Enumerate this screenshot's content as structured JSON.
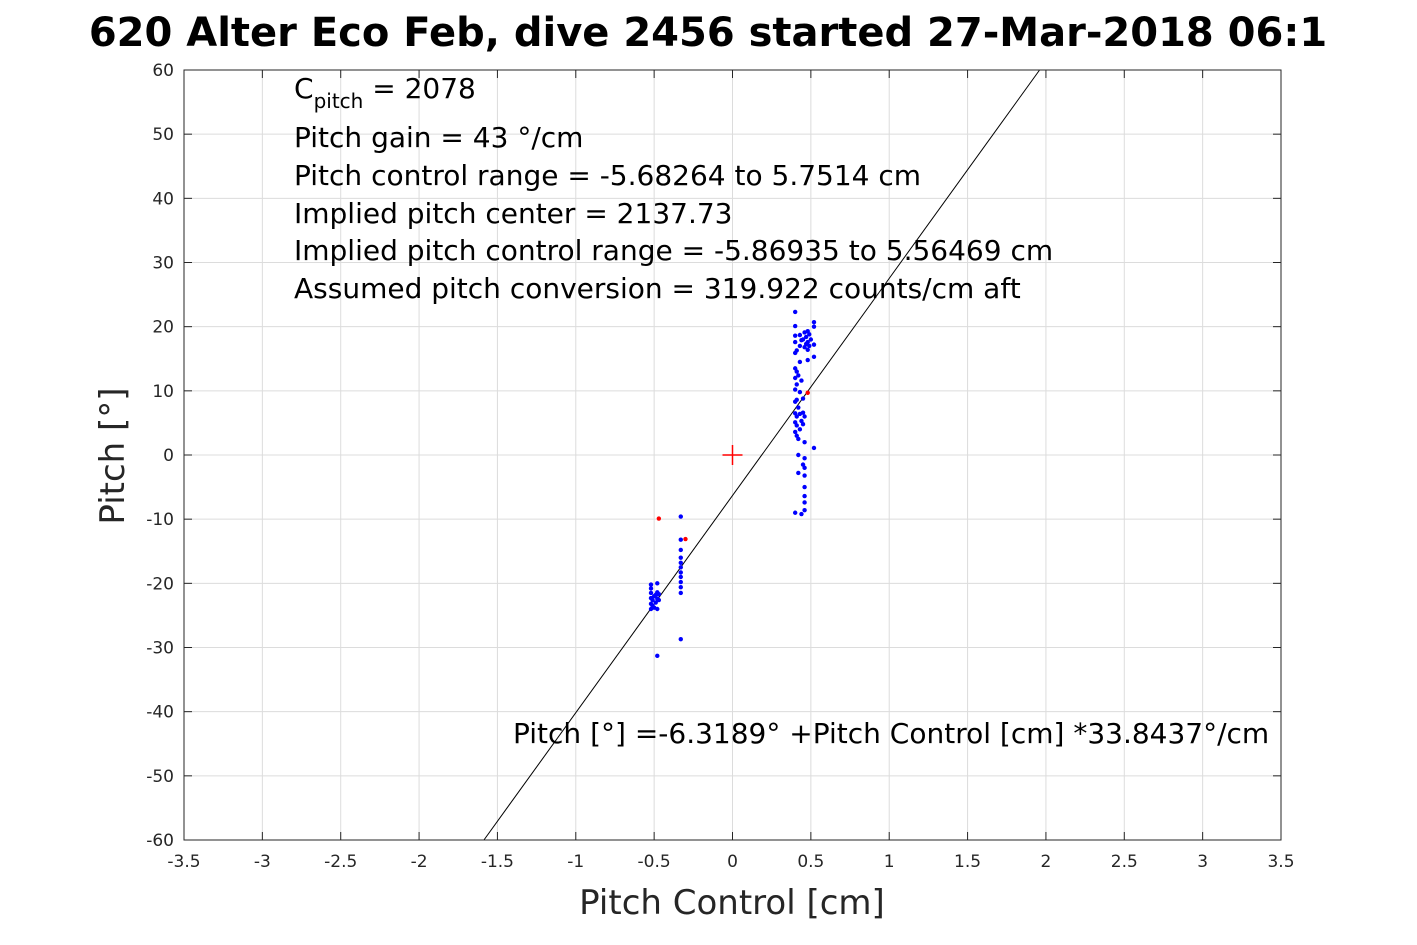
{
  "chart_data": {
    "type": "scatter",
    "title": "620 Alter Eco Feb, dive 2456 started 27-Mar-2018 06:1",
    "xlabel": "Pitch Control [cm]",
    "ylabel": "Pitch [°]",
    "xlim": [
      -3.5,
      3.5
    ],
    "ylim": [
      -60,
      60
    ],
    "xticks": [
      -3.5,
      -3,
      -2.5,
      -2,
      -1.5,
      -1,
      -0.5,
      0,
      0.5,
      1,
      1.5,
      2,
      2.5,
      3,
      3.5
    ],
    "xtick_labels": [
      "-3.5",
      "-3",
      "-2.5",
      "-2",
      "-1.5",
      "-1",
      "-0.5",
      "0",
      "0.5",
      "1",
      "1.5",
      "2",
      "2.5",
      "3",
      "3.5"
    ],
    "yticks": [
      60,
      50,
      40,
      30,
      20,
      10,
      0,
      -10,
      -20,
      -30,
      -40,
      -50,
      -60
    ],
    "ytick_labels": [
      "60",
      "50",
      "40",
      "30",
      "20",
      "10",
      "0",
      "-10",
      "-20",
      "-30",
      "-40",
      "-50",
      "-60"
    ],
    "grid": true,
    "annotations": {
      "c_pitch_main": "C",
      "c_pitch_sub": "pitch",
      "c_pitch_value": " = 2078",
      "lines": [
        "Pitch gain = 43 °/cm",
        "Pitch control range = -5.68264 to 5.7514 cm",
        "Implied pitch center = 2137.73",
        "Implied pitch control range = -5.86935 to 5.56469 cm",
        "Assumed pitch conversion = 319.922 counts/cm aft"
      ],
      "fit_equation": "Pitch [°] =-6.3189° +Pitch Control [cm] *33.8437°/cm"
    },
    "fit_line": {
      "intercept": -6.3189,
      "slope": 33.8437,
      "color": "#000000"
    },
    "center_marker": {
      "x": 0,
      "y": 0,
      "color": "#ff0000"
    },
    "series": [
      {
        "color": "#0000ff",
        "points": [
          [
            -0.52,
            -20.2
          ],
          [
            -0.52,
            -20.8
          ],
          [
            -0.52,
            -21.5
          ],
          [
            -0.52,
            -22.3
          ],
          [
            -0.52,
            -23.2
          ],
          [
            -0.52,
            -24.0
          ],
          [
            -0.51,
            -23.5
          ],
          [
            -0.51,
            -22.6
          ],
          [
            -0.5,
            -23.8
          ],
          [
            -0.5,
            -22.0
          ],
          [
            -0.49,
            -21.8
          ],
          [
            -0.49,
            -23.0
          ],
          [
            -0.48,
            -22.4
          ],
          [
            -0.48,
            -21.4
          ],
          [
            -0.48,
            -20.0
          ],
          [
            -0.48,
            -24.0
          ],
          [
            -0.47,
            -21.7
          ],
          [
            -0.47,
            -22.6
          ],
          [
            -0.48,
            -31.3
          ],
          [
            -0.33,
            -9.6
          ],
          [
            -0.33,
            -13.2
          ],
          [
            -0.33,
            -14.8
          ],
          [
            -0.33,
            -16.0
          ],
          [
            -0.33,
            -16.8
          ],
          [
            -0.33,
            -17.5
          ],
          [
            -0.33,
            -18.3
          ],
          [
            -0.33,
            -19.0
          ],
          [
            -0.33,
            -19.8
          ],
          [
            -0.33,
            -20.6
          ],
          [
            -0.33,
            -21.5
          ],
          [
            -0.33,
            -28.7
          ],
          [
            0.4,
            22.3
          ],
          [
            0.4,
            20.1
          ],
          [
            0.4,
            18.6
          ],
          [
            0.4,
            17.6
          ],
          [
            0.4,
            15.9
          ],
          [
            0.4,
            13.5
          ],
          [
            0.4,
            12.0
          ],
          [
            0.4,
            10.2
          ],
          [
            0.4,
            8.3
          ],
          [
            0.4,
            6.5
          ],
          [
            0.4,
            5.1
          ],
          [
            0.4,
            3.6
          ],
          [
            0.4,
            -9.0
          ],
          [
            0.41,
            16.3
          ],
          [
            0.41,
            13.0
          ],
          [
            0.41,
            11.0
          ],
          [
            0.41,
            8.6
          ],
          [
            0.41,
            6.0
          ],
          [
            0.41,
            4.6
          ],
          [
            0.41,
            3.0
          ],
          [
            0.42,
            12.4
          ],
          [
            0.42,
            7.4
          ],
          [
            0.42,
            2.5
          ],
          [
            0.42,
            0.0
          ],
          [
            0.42,
            -2.8
          ],
          [
            0.43,
            18.7
          ],
          [
            0.43,
            17.0
          ],
          [
            0.43,
            14.5
          ],
          [
            0.43,
            9.8
          ],
          [
            0.43,
            6.4
          ],
          [
            0.43,
            4.0
          ],
          [
            0.44,
            17.9
          ],
          [
            0.44,
            11.6
          ],
          [
            0.44,
            5.3
          ],
          [
            0.44,
            -9.2
          ],
          [
            0.45,
            18.0
          ],
          [
            0.45,
            8.8
          ],
          [
            0.45,
            6.6
          ],
          [
            0.45,
            4.8
          ],
          [
            0.45,
            -1.5
          ],
          [
            0.46,
            19.1
          ],
          [
            0.46,
            16.8
          ],
          [
            0.46,
            6.0
          ],
          [
            0.46,
            2.0
          ],
          [
            0.46,
            -0.5
          ],
          [
            0.46,
            -2.0
          ],
          [
            0.46,
            -3.2
          ],
          [
            0.46,
            -5.0
          ],
          [
            0.46,
            -6.4
          ],
          [
            0.46,
            -7.4
          ],
          [
            0.46,
            -8.6
          ],
          [
            0.47,
            18.4
          ],
          [
            0.47,
            17.3
          ],
          [
            0.48,
            19.3
          ],
          [
            0.48,
            17.6
          ],
          [
            0.48,
            16.4
          ],
          [
            0.48,
            14.8
          ],
          [
            0.49,
            18.8
          ],
          [
            0.49,
            17.0
          ],
          [
            0.5,
            18.0
          ],
          [
            0.52,
            20.7
          ],
          [
            0.52,
            20.0
          ],
          [
            0.52,
            17.2
          ],
          [
            0.52,
            15.3
          ],
          [
            0.52,
            1.1
          ]
        ]
      },
      {
        "color": "#ff0000",
        "points": [
          [
            -0.47,
            -9.9
          ],
          [
            -0.3,
            -13.1
          ],
          [
            0.48,
            9.7
          ]
        ]
      }
    ]
  }
}
